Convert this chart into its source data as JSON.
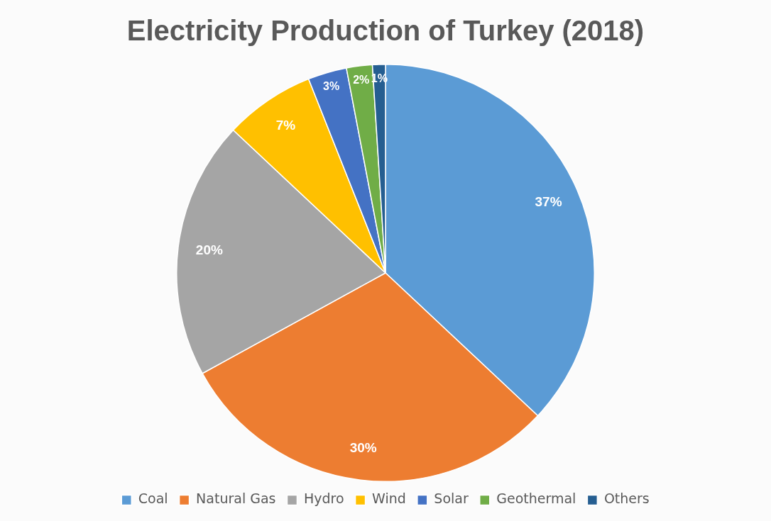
{
  "chart_data": {
    "type": "pie",
    "title": "Electricity Production of Turkey (2018)",
    "categories": [
      "Coal",
      "Natural Gas",
      "Hydro",
      "Wind",
      "Solar",
      "Geothermal",
      "Others"
    ],
    "values": [
      37,
      30,
      20,
      7,
      3,
      2,
      1
    ],
    "colors": [
      "#5b9bd5",
      "#ed7d31",
      "#a5a5a5",
      "#ffc000",
      "#4472c4",
      "#70ad47",
      "#255e91"
    ],
    "value_labels": [
      "37%",
      "30%",
      "20%",
      "7%",
      "3%",
      "2%",
      "1%"
    ],
    "legend": "bottom"
  }
}
